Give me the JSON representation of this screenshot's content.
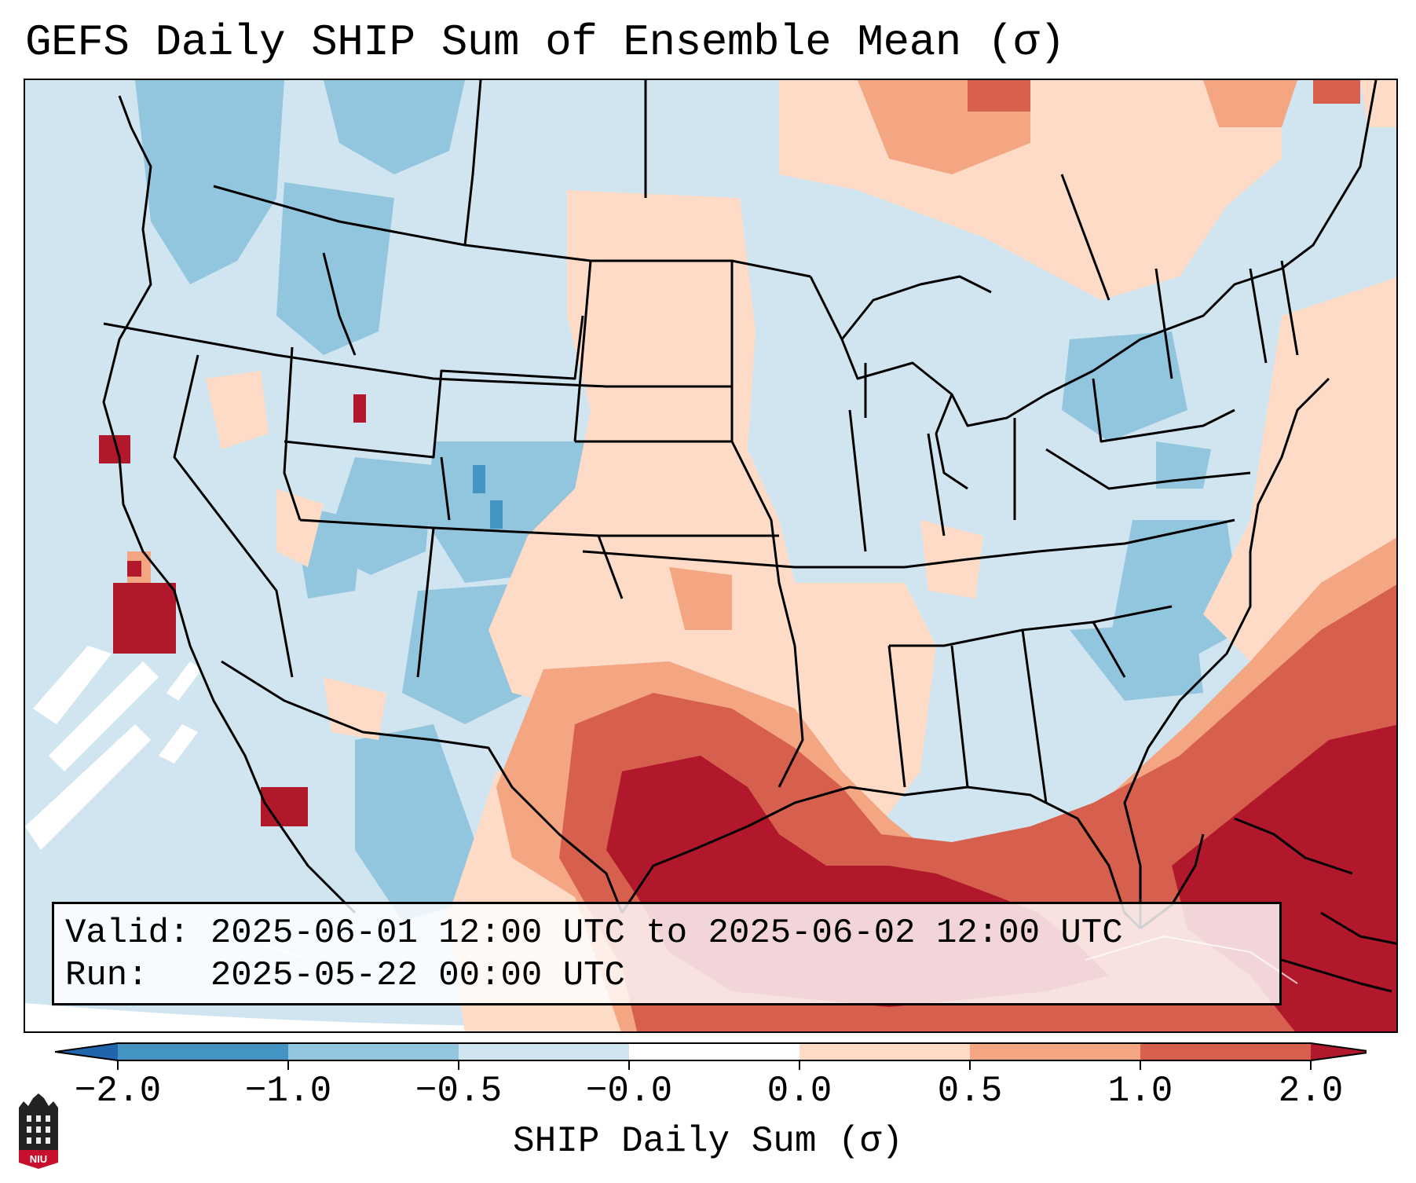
{
  "figure": {
    "title": "GEFS Daily SHIP Sum of Ensemble Mean (σ)",
    "valid_line": "Valid: 2025-06-01 12:00 UTC to 2025-06-02 12:00 UTC",
    "run_line": "Run:   2025-05-22 00:00 UTC",
    "colorbar_label": "SHIP Daily Sum (σ)",
    "logo_text": "NIU"
  },
  "colorbar": {
    "ticks": [
      "−2.0",
      "−1.0",
      "−0.5",
      "−0.0",
      "0.0",
      "0.5",
      "1.0",
      "2.0"
    ],
    "bins": [
      {
        "label": "below -2.0",
        "color": "#2166ac"
      },
      {
        "label": "-2.0 to -1.0",
        "color": "#4393c3"
      },
      {
        "label": "-1.0 to -0.5",
        "color": "#92c5de"
      },
      {
        "label": "-0.5 to -0.0",
        "color": "#d1e5f0"
      },
      {
        "label": "-0.0 to 0.0",
        "color": "#ffffff"
      },
      {
        "label": "0.0 to 0.5",
        "color": "#fddbc7"
      },
      {
        "label": "0.5 to 1.0",
        "color": "#f4a582"
      },
      {
        "label": "1.0 to 2.0",
        "color": "#d6604d"
      },
      {
        "label": "above 2.0",
        "color": "#b2182b"
      }
    ],
    "extend": "both"
  },
  "map": {
    "projection": "Lambert Conformal (CONUS)",
    "variable": "SHIP daily sum, ensemble mean, standardized anomaly (σ)"
  },
  "colors": {
    "ocean_outside_domain": "#ffffff",
    "border": "#000000",
    "logo_red": "#c8102e"
  }
}
